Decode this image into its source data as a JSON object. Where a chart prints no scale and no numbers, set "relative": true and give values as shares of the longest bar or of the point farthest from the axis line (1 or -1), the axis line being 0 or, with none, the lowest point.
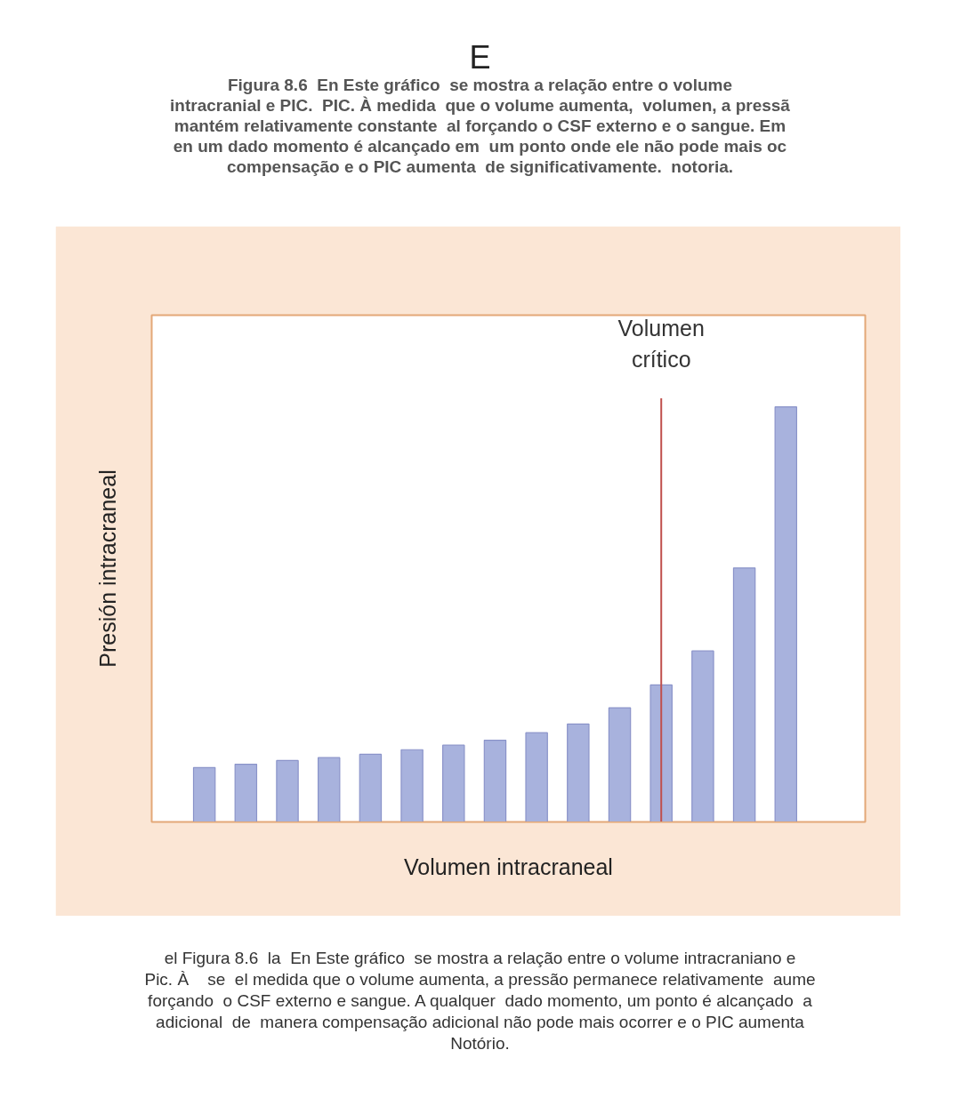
{
  "chart_data": {
    "type": "bar",
    "title": "E",
    "subtitle": "Figura 8.6  En Este gráfico  se mostra a relação entre o volume\nintracranial e PIC.  PIC. À medida  que o volume aumenta,  volumen, a pressã\nmantém relativamente constante  al forçando o CSF externo e o sangue. Em\nen um dado momento é alcançado em  um ponto onde ele não pode mais oc\ncompensação e o PIC aumenta  de significativamente.  notoria.",
    "xlabel": "Volumen intracraneal",
    "ylabel": "Presión intracraneal",
    "categories": [
      null,
      null,
      null,
      null,
      null,
      null,
      null,
      null,
      null,
      null,
      null,
      null,
      null,
      null,
      null
    ],
    "values": [
      0.131,
      0.139,
      0.148,
      0.155,
      0.163,
      0.174,
      0.185,
      0.197,
      0.215,
      0.236,
      0.275,
      0.33,
      0.412,
      0.612,
      1
    ],
    "color": "#a8b2dd",
    "relative": true,
    "grid": false,
    "annotations": [
      "Volumen crítico",
      "el Figura 8.6  la  En Este gráfico  se mostra a relação entre o volume intracraniano e\nPic. À    se  el medida que o volume aumenta, a pressão permanece relativamente  aume\nforçando  o CSF externo e sangue. A qualquer  dado momento, um ponto é alcançado  a\nadicional  de  manera compensação adicional não pode mais ocorrer e o PIC aumenta\nNotório."
    ]
  }
}
